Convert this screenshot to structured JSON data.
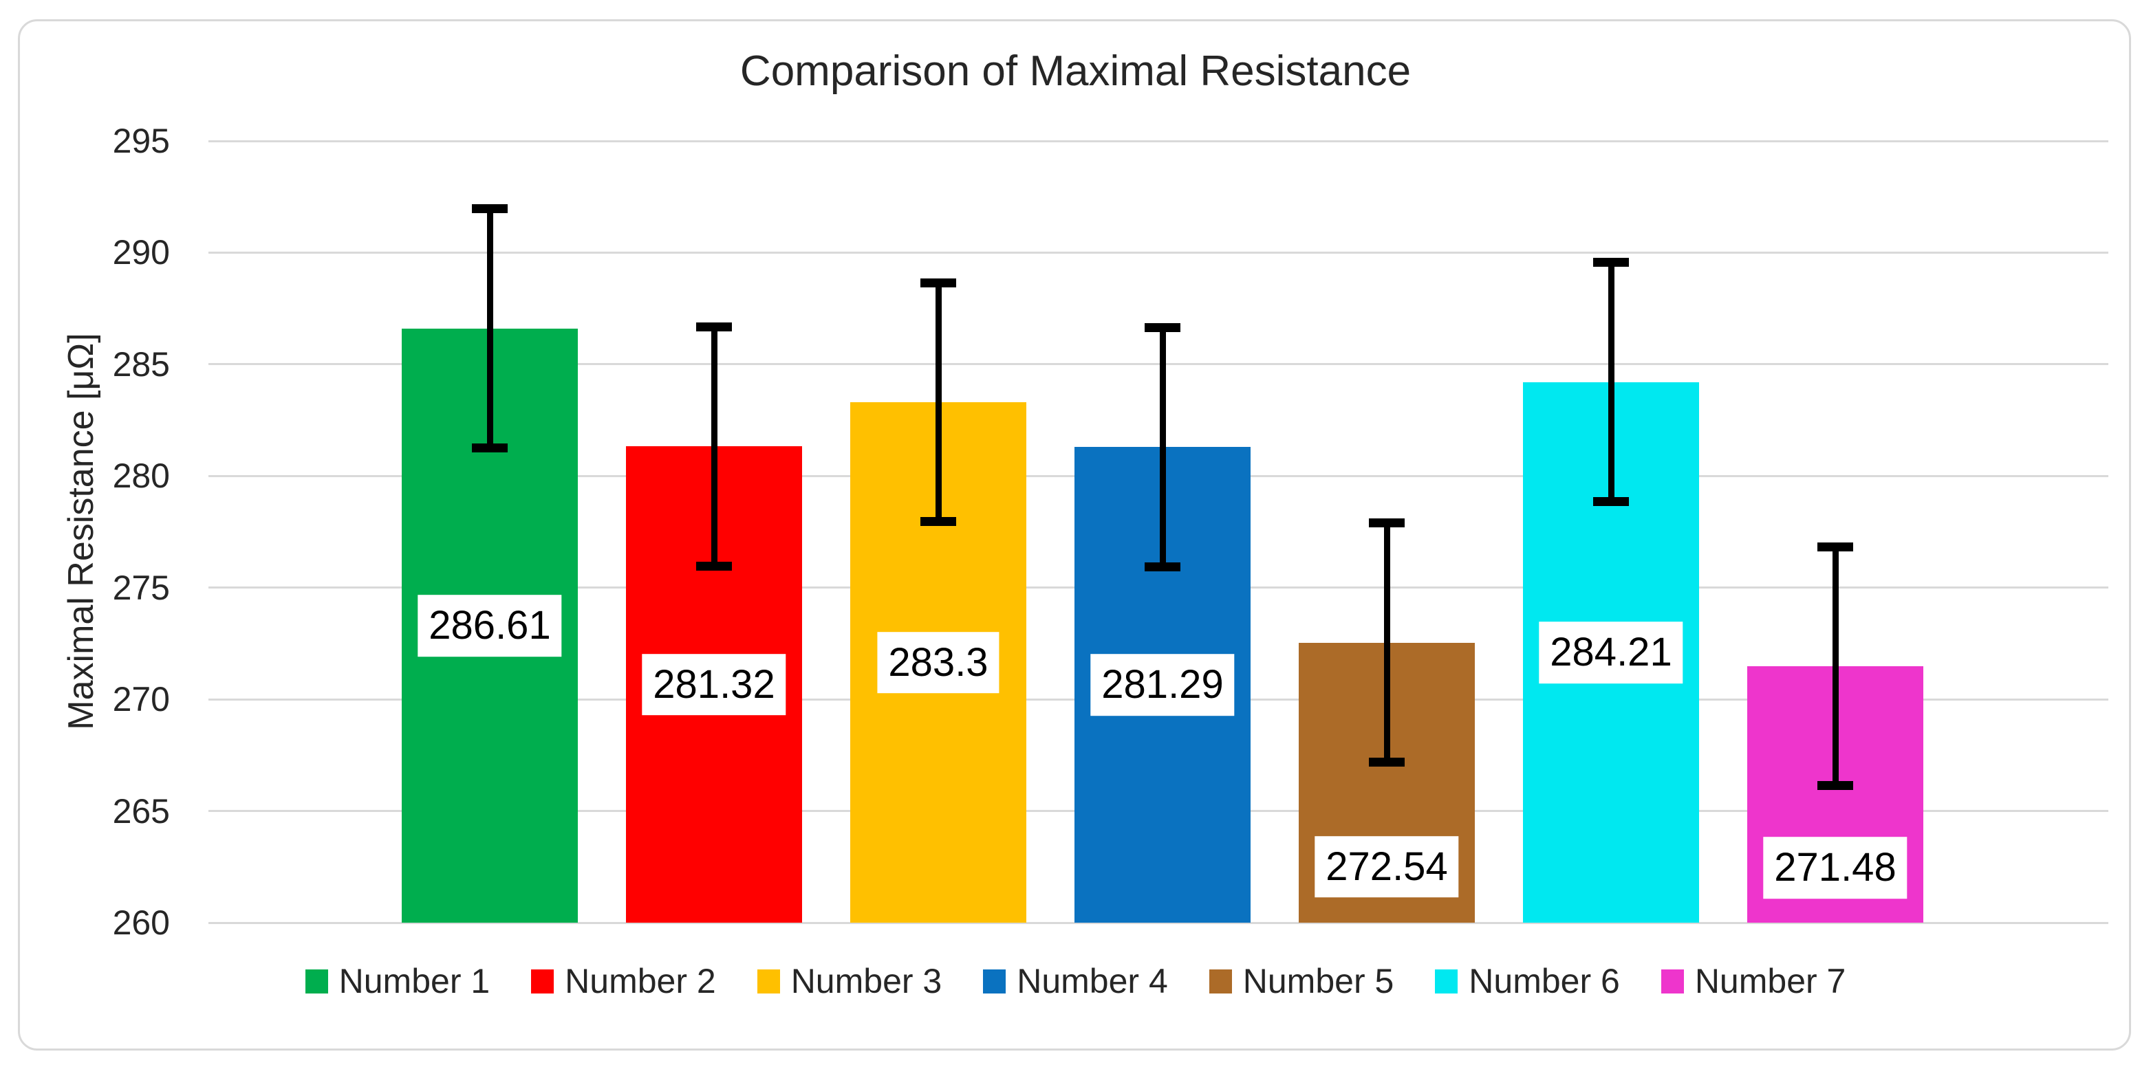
{
  "chart_data": {
    "type": "bar",
    "title": "Comparison of Maximal Resistance",
    "xlabel": "",
    "ylabel": "Maximal Resistance [μΩ]",
    "ylim": [
      260,
      295
    ],
    "yticks": [
      "260",
      "265",
      "270",
      "275",
      "280",
      "285",
      "290",
      "295"
    ],
    "grid": true,
    "legend_position": "bottom",
    "categories": [
      "Number 1",
      "Number 2",
      "Number 3",
      "Number 4",
      "Number 5",
      "Number 6",
      "Number 7"
    ],
    "series": [
      {
        "name": "Number 1",
        "value": 286.61,
        "label": "286.61",
        "error": 5.35,
        "label_center_value": 273.3,
        "color": "#00AE4E"
      },
      {
        "name": "Number 2",
        "value": 281.32,
        "label": "281.32",
        "error": 5.35,
        "label_center_value": 270.66,
        "color": "#FF0000"
      },
      {
        "name": "Number 3",
        "value": 283.3,
        "label": "283.3",
        "error": 5.35,
        "label_center_value": 271.65,
        "color": "#FFC000"
      },
      {
        "name": "Number 4",
        "value": 281.29,
        "label": "281.29",
        "error": 5.35,
        "label_center_value": 270.65,
        "color": "#0A72C0"
      },
      {
        "name": "Number 5",
        "value": 272.54,
        "label": "272.54",
        "error": 5.35,
        "label_center_value": 262.5,
        "color": "#AC6B28"
      },
      {
        "name": "Number 6",
        "value": 284.21,
        "label": "284.21",
        "error": 5.35,
        "label_center_value": 272.1,
        "color": "#00E8F0"
      },
      {
        "name": "Number 7",
        "value": 271.48,
        "label": "271.48",
        "error": 5.35,
        "label_center_value": 262.45,
        "color": "#EE35CC"
      }
    ],
    "colors": {
      "background": "#FFFFFF",
      "chart_border": "#D9D9D9",
      "gridline": "#D9D9D9",
      "error_bar": "#000000",
      "data_label_background": "#FFFFFF",
      "data_label_text": "#000000",
      "axis_text": "#262626",
      "title_text": "#262626"
    }
  }
}
